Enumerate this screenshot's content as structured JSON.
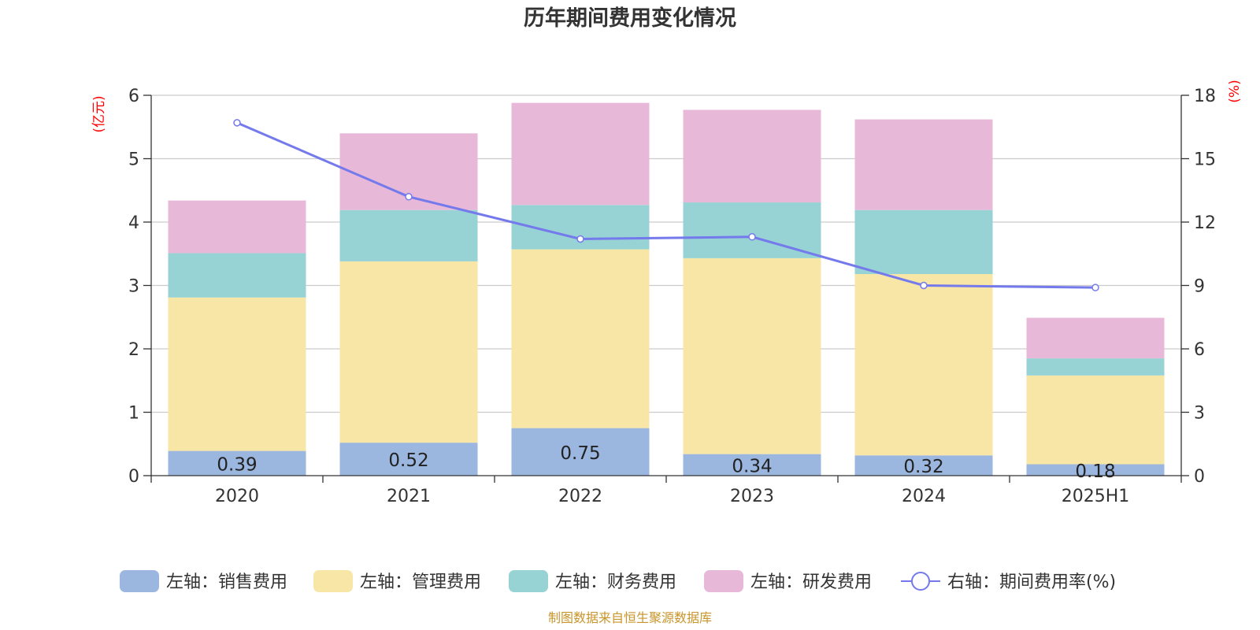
{
  "chart_data": {
    "type": "bar",
    "title": "历年期间费用变化情况",
    "categories": [
      "2020",
      "2021",
      "2022",
      "2023",
      "2024",
      "2025H1"
    ],
    "stacked": true,
    "left_axis": {
      "unit": "(亿元)",
      "ylim": [
        0,
        6
      ],
      "ticks": [
        "0",
        "1",
        "2",
        "3",
        "4",
        "5",
        "6"
      ]
    },
    "right_axis": {
      "unit": "(%)",
      "ylim": [
        0,
        18
      ],
      "ticks": [
        "0",
        "3",
        "6",
        "9",
        "12",
        "15",
        "18"
      ]
    },
    "series": [
      {
        "name": "左轴：销售费用",
        "type": "bar",
        "axis": "left",
        "color": "#9bb7e0",
        "values": [
          0.39,
          0.52,
          0.75,
          0.34,
          0.32,
          0.18
        ],
        "labels": [
          "0.39",
          "0.52",
          "0.75",
          "0.34",
          "0.32",
          "0.18"
        ]
      },
      {
        "name": "左轴：管理费用",
        "type": "bar",
        "axis": "left",
        "color": "#f7e6a6",
        "values": [
          2.42,
          2.86,
          2.82,
          3.09,
          2.86,
          1.4
        ]
      },
      {
        "name": "左轴：财务费用",
        "type": "bar",
        "axis": "left",
        "color": "#97d3d4",
        "values": [
          0.7,
          0.81,
          0.7,
          0.88,
          1.01,
          0.27
        ]
      },
      {
        "name": "左轴：研发费用",
        "type": "bar",
        "axis": "left",
        "color": "#e8b8d8",
        "values": [
          0.83,
          1.21,
          1.61,
          1.46,
          1.43,
          0.64
        ]
      },
      {
        "name": "右轴：期间费用率(%)",
        "type": "line",
        "axis": "right",
        "color": "#7479ec",
        "values": [
          16.7,
          13.2,
          11.2,
          11.3,
          9.0,
          8.9
        ]
      }
    ],
    "grid": true,
    "legend_position": "bottom"
  },
  "source_note": "制图数据来自恒生聚源数据库"
}
